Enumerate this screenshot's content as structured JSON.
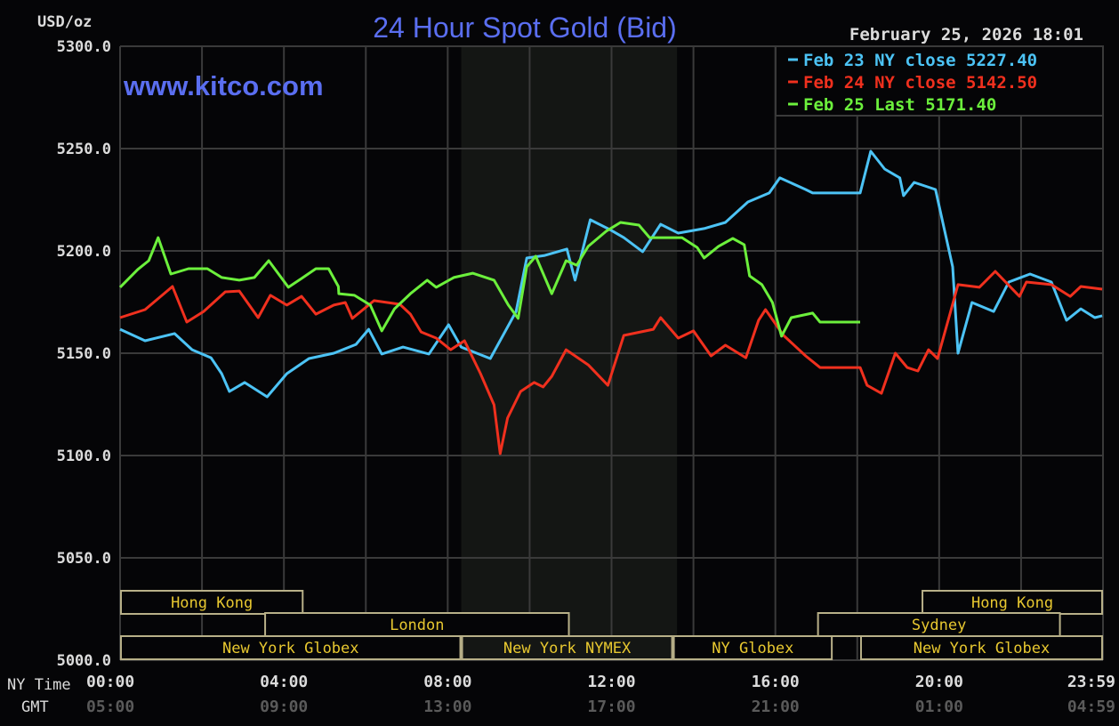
{
  "chart_data": {
    "type": "line",
    "title": "24 Hour Spot Gold (Bid)",
    "watermark": "www.kitco.com",
    "timestamp": "February 25, 2026 18:01",
    "ylabel": "USD/oz",
    "ylim": [
      5000,
      5300
    ],
    "xlim": [
      0,
      24
    ],
    "y_ticks": [
      "5300.0",
      "5250.0",
      "5200.0",
      "5150.0",
      "5100.0",
      "5050.0",
      "5000.0"
    ],
    "y_tick_values": [
      5300,
      5250,
      5200,
      5150,
      5100,
      5050,
      5000
    ],
    "x_row_labels": {
      "ny": "NY Time",
      "gmt": "GMT"
    },
    "x_ticks_ny": [
      "00:00",
      "04:00",
      "08:00",
      "12:00",
      "16:00",
      "20:00",
      "23:59"
    ],
    "x_ticks_gmt": [
      "05:00",
      "09:00",
      "13:00",
      "17:00",
      "21:00",
      "01:00",
      "04:59"
    ],
    "x_tick_hours": [
      0,
      4,
      8,
      12,
      16,
      20,
      24
    ],
    "grid": true,
    "shaded_hours": [
      8.33,
      13.6
    ],
    "legend_placement": "top-right",
    "series": [
      {
        "name": "Feb 23 NY close 5227.40",
        "color": "#4cc3f5",
        "points": [
          [
            0,
            5161.7
          ],
          [
            0.61,
            5156.1
          ],
          [
            1.33,
            5159.6
          ],
          [
            1.76,
            5151.7
          ],
          [
            2.22,
            5147.8
          ],
          [
            2.48,
            5140.0
          ],
          [
            2.67,
            5131.3
          ],
          [
            3.04,
            5135.7
          ],
          [
            3.59,
            5128.7
          ],
          [
            4.07,
            5140.0
          ],
          [
            4.61,
            5147.4
          ],
          [
            5.22,
            5150.0
          ],
          [
            5.76,
            5154.3
          ],
          [
            6.07,
            5161.7
          ],
          [
            6.39,
            5149.6
          ],
          [
            6.91,
            5153.0
          ],
          [
            7.54,
            5149.6
          ],
          [
            8.02,
            5163.9
          ],
          [
            8.33,
            5153.0
          ],
          [
            9.04,
            5147.4
          ],
          [
            9.67,
            5170.4
          ],
          [
            9.93,
            5196.5
          ],
          [
            10.37,
            5197.8
          ],
          [
            10.91,
            5200.9
          ],
          [
            11.11,
            5185.7
          ],
          [
            11.48,
            5215.2
          ],
          [
            11.96,
            5210.4
          ],
          [
            12.3,
            5206.5
          ],
          [
            12.76,
            5199.6
          ],
          [
            13.2,
            5213.0
          ],
          [
            13.63,
            5208.7
          ],
          [
            14.26,
            5210.9
          ],
          [
            14.78,
            5213.9
          ],
          [
            15.33,
            5223.9
          ],
          [
            15.85,
            5228.3
          ],
          [
            16.11,
            5235.7
          ],
          [
            16.74,
            5230.0
          ],
          [
            16.91,
            5228.3
          ],
          [
            18.07,
            5228.3
          ],
          [
            18.33,
            5248.7
          ],
          [
            18.67,
            5240.0
          ],
          [
            19.04,
            5235.7
          ],
          [
            19.13,
            5227.0
          ],
          [
            19.39,
            5233.5
          ],
          [
            19.91,
            5230.0
          ],
          [
            20.17,
            5206.5
          ],
          [
            20.33,
            5192.2
          ],
          [
            20.46,
            5150.0
          ],
          [
            20.8,
            5174.8
          ],
          [
            21.33,
            5170.4
          ],
          [
            21.7,
            5184.8
          ],
          [
            22.22,
            5188.7
          ],
          [
            22.74,
            5184.8
          ],
          [
            23.11,
            5166.1
          ],
          [
            23.46,
            5171.7
          ],
          [
            23.8,
            5167.4
          ],
          [
            23.98,
            5168.3
          ]
        ]
      },
      {
        "name": "Feb 24 NY close 5142.50",
        "color": "#f0301e",
        "points": [
          [
            0,
            5167.4
          ],
          [
            0.61,
            5171.3
          ],
          [
            1.07,
            5179.1
          ],
          [
            1.28,
            5182.6
          ],
          [
            1.63,
            5165.2
          ],
          [
            2.04,
            5170.4
          ],
          [
            2.57,
            5180.0
          ],
          [
            2.91,
            5180.4
          ],
          [
            3.37,
            5167.4
          ],
          [
            3.67,
            5178.3
          ],
          [
            4.07,
            5173.5
          ],
          [
            4.43,
            5177.8
          ],
          [
            4.78,
            5169.1
          ],
          [
            5.22,
            5173.5
          ],
          [
            5.5,
            5174.8
          ],
          [
            5.67,
            5167.0
          ],
          [
            6.2,
            5175.7
          ],
          [
            6.83,
            5173.9
          ],
          [
            7.09,
            5169.1
          ],
          [
            7.35,
            5160.4
          ],
          [
            7.72,
            5157.4
          ],
          [
            8.07,
            5151.7
          ],
          [
            8.41,
            5156.1
          ],
          [
            8.8,
            5140.0
          ],
          [
            9.13,
            5124.8
          ],
          [
            9.28,
            5100.9
          ],
          [
            9.46,
            5118.3
          ],
          [
            9.78,
            5131.3
          ],
          [
            10.11,
            5135.7
          ],
          [
            10.33,
            5133.5
          ],
          [
            10.54,
            5138.7
          ],
          [
            10.89,
            5151.7
          ],
          [
            11.43,
            5144.3
          ],
          [
            11.91,
            5134.3
          ],
          [
            12.3,
            5158.7
          ],
          [
            13.02,
            5161.7
          ],
          [
            13.2,
            5167.4
          ],
          [
            13.63,
            5157.4
          ],
          [
            14.0,
            5160.9
          ],
          [
            14.43,
            5148.7
          ],
          [
            14.78,
            5153.9
          ],
          [
            15.28,
            5147.8
          ],
          [
            15.59,
            5166.1
          ],
          [
            15.76,
            5171.3
          ],
          [
            16.2,
            5158.7
          ],
          [
            16.74,
            5148.7
          ],
          [
            17.09,
            5143.0
          ],
          [
            18.07,
            5143.0
          ],
          [
            18.24,
            5134.3
          ],
          [
            18.59,
            5130.4
          ],
          [
            18.93,
            5150.0
          ],
          [
            19.22,
            5143.0
          ],
          [
            19.48,
            5141.3
          ],
          [
            19.74,
            5151.7
          ],
          [
            19.96,
            5147.4
          ],
          [
            20.28,
            5170.4
          ],
          [
            20.46,
            5183.5
          ],
          [
            20.98,
            5182.2
          ],
          [
            21.37,
            5190.0
          ],
          [
            21.96,
            5177.8
          ],
          [
            22.13,
            5184.8
          ],
          [
            22.74,
            5183.5
          ],
          [
            23.2,
            5177.8
          ],
          [
            23.46,
            5182.6
          ],
          [
            23.98,
            5181.3
          ]
        ]
      },
      {
        "name": "Feb 25 Last 5171.40",
        "color": "#6cf03c",
        "points": [
          [
            0,
            5182.2
          ],
          [
            0.43,
            5190.9
          ],
          [
            0.7,
            5195.2
          ],
          [
            0.93,
            5206.5
          ],
          [
            1.24,
            5188.7
          ],
          [
            1.67,
            5191.3
          ],
          [
            2.13,
            5191.3
          ],
          [
            2.48,
            5187.0
          ],
          [
            2.91,
            5185.7
          ],
          [
            3.28,
            5187.0
          ],
          [
            3.63,
            5195.2
          ],
          [
            4.11,
            5182.2
          ],
          [
            4.43,
            5186.5
          ],
          [
            4.78,
            5191.3
          ],
          [
            5.09,
            5191.3
          ],
          [
            5.33,
            5182.6
          ],
          [
            5.34,
            5179.1
          ],
          [
            5.72,
            5178.3
          ],
          [
            6.11,
            5173.5
          ],
          [
            6.39,
            5160.9
          ],
          [
            6.7,
            5171.7
          ],
          [
            7.09,
            5179.1
          ],
          [
            7.5,
            5185.7
          ],
          [
            7.72,
            5182.2
          ],
          [
            8.15,
            5187.0
          ],
          [
            8.61,
            5189.1
          ],
          [
            9.13,
            5185.7
          ],
          [
            9.48,
            5173.5
          ],
          [
            9.72,
            5167.0
          ],
          [
            9.93,
            5192.2
          ],
          [
            10.15,
            5197.4
          ],
          [
            10.54,
            5179.1
          ],
          [
            10.89,
            5195.2
          ],
          [
            11.15,
            5193.0
          ],
          [
            11.43,
            5202.2
          ],
          [
            11.87,
            5209.6
          ],
          [
            12.22,
            5213.9
          ],
          [
            12.67,
            5212.6
          ],
          [
            12.93,
            5206.5
          ],
          [
            13.72,
            5206.5
          ],
          [
            14.09,
            5201.7
          ],
          [
            14.26,
            5196.5
          ],
          [
            14.61,
            5202.2
          ],
          [
            14.96,
            5206.1
          ],
          [
            15.24,
            5203.0
          ],
          [
            15.37,
            5187.8
          ],
          [
            15.67,
            5183.5
          ],
          [
            15.93,
            5174.8
          ],
          [
            16.15,
            5158.3
          ],
          [
            16.39,
            5167.4
          ],
          [
            16.91,
            5169.6
          ],
          [
            17.09,
            5165.2
          ],
          [
            18.07,
            5165.2
          ]
        ]
      }
    ],
    "sessions": [
      [
        {
          "label": "Hong Kong",
          "start": 0,
          "end": 4.48
        },
        {
          "label": "Hong Kong",
          "start": 19.57,
          "end": 24
        }
      ],
      [
        {
          "label": "London",
          "start": 3.52,
          "end": 10.98
        },
        {
          "label": "Sydney",
          "start": 17.02,
          "end": 22.97
        }
      ],
      [
        {
          "label": "New York Globex",
          "start": 0,
          "end": 8.33
        },
        {
          "label": "New York NYMEX",
          "start": 8.33,
          "end": 13.5
        },
        {
          "label": "NY Globex",
          "start": 13.5,
          "end": 17.4
        },
        {
          "label": "New York Globex",
          "start": 18.07,
          "end": 24
        }
      ]
    ],
    "colors": {
      "title": "#5a6ef0",
      "grid": "#3a3a3a",
      "session_border": "#b8b088",
      "session_text": "#e8c830",
      "shade": "#141614",
      "axis_text": "#dcdcdc",
      "gmt_text": "#5a5a5a"
    }
  }
}
